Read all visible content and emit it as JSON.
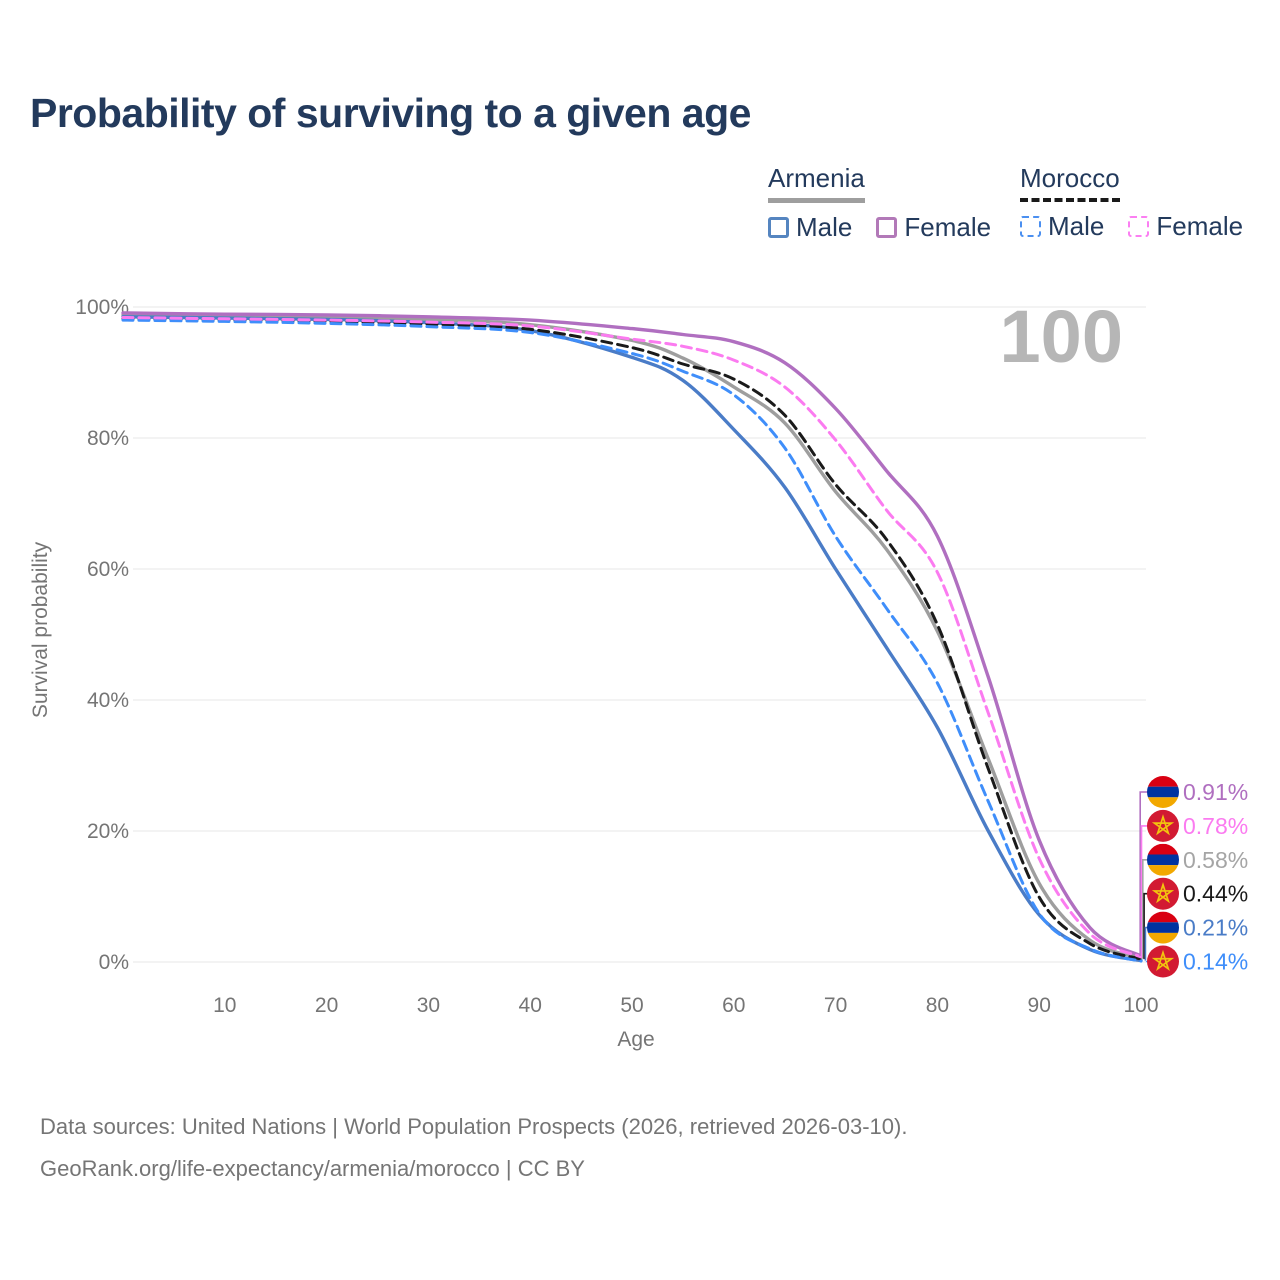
{
  "title": "Probability of surviving to a given age",
  "watermark_age": "100",
  "legend": {
    "groups": [
      {
        "name": "Armenia",
        "line_style": "solid",
        "underline_color": "#9e9e9e",
        "items": [
          {
            "label": "Male",
            "color": "#5585c0",
            "dashed": false
          },
          {
            "label": "Female",
            "color": "#b279b8",
            "dashed": false
          }
        ]
      },
      {
        "name": "Morocco",
        "line_style": "dashed",
        "underline_color": "#1a1a1a",
        "items": [
          {
            "label": "Male",
            "color": "#4a8ff0",
            "dashed": true
          },
          {
            "label": "Female",
            "color": "#fb7ff2",
            "dashed": true
          }
        ]
      }
    ]
  },
  "chart_data": {
    "type": "line",
    "title": "Probability of surviving to a given age",
    "xlabel": "Age",
    "ylabel": "Survival probability",
    "xlim": [
      0,
      100
    ],
    "ylim": [
      0,
      100
    ],
    "grid": "horizontal",
    "x_ticks": [
      10,
      20,
      30,
      40,
      50,
      60,
      70,
      80,
      90,
      100
    ],
    "y_ticks": [
      "0%",
      "20%",
      "40%",
      "60%",
      "80%",
      "100%"
    ],
    "ages": [
      0,
      10,
      20,
      30,
      40,
      50,
      55,
      60,
      65,
      70,
      75,
      80,
      85,
      90,
      95,
      100
    ],
    "series": [
      {
        "name": "Armenia Female",
        "country": "Armenia",
        "sex": "Female",
        "color": "#b06fc0",
        "dashed": false,
        "values": [
          99.1,
          98.9,
          98.8,
          98.5,
          98.0,
          96.7,
          95.8,
          94.7,
          91.5,
          84.5,
          75.0,
          65.0,
          43.5,
          18.6,
          5.2,
          0.91
        ]
      },
      {
        "name": "Morocco Female",
        "country": "Morocco",
        "sex": "Female",
        "color": "#fb7bf0",
        "dashed": true,
        "values": [
          98.4,
          98.2,
          98.0,
          97.7,
          97.1,
          95.1,
          94.0,
          91.9,
          87.8,
          79.7,
          69.0,
          59.5,
          38.0,
          15.8,
          4.3,
          0.78
        ]
      },
      {
        "name": "Armenia Both sexes",
        "country": "Armenia",
        "sex": "Both",
        "color": "#9e9e9e",
        "dashed": false,
        "values": [
          98.8,
          98.6,
          98.5,
          98.1,
          97.3,
          94.9,
          92.2,
          87.8,
          82.3,
          71.8,
          63.0,
          50.5,
          31.0,
          12.0,
          3.3,
          0.58
        ]
      },
      {
        "name": "Morocco Both sexes",
        "country": "Morocco",
        "sex": "Both",
        "color": "#1a1a1a",
        "dashed": true,
        "values": [
          98.2,
          98.0,
          97.8,
          97.4,
          96.6,
          93.8,
          91.3,
          89.0,
          83.5,
          72.9,
          64.5,
          51.5,
          29.5,
          9.9,
          2.8,
          0.44
        ]
      },
      {
        "name": "Armenia Male",
        "country": "Armenia",
        "sex": "Male",
        "color": "#4a7cc7",
        "dashed": false,
        "values": [
          98.5,
          98.3,
          98.1,
          97.6,
          96.4,
          92.3,
          88.8,
          81.3,
          72.5,
          60.0,
          48.0,
          35.8,
          20.0,
          7.2,
          1.9,
          0.21
        ]
      },
      {
        "name": "Morocco Male",
        "country": "Morocco",
        "sex": "Male",
        "color": "#3f8efa",
        "dashed": true,
        "values": [
          98.0,
          97.8,
          97.5,
          97.0,
          96.1,
          92.9,
          90.2,
          86.6,
          78.5,
          65.0,
          54.0,
          42.6,
          24.5,
          7.4,
          2.0,
          0.14
        ]
      }
    ],
    "end_labels": [
      {
        "text": "0.91%",
        "color": "#b06fc0",
        "flag": "armenia"
      },
      {
        "text": "0.78%",
        "color": "#fb7bf0",
        "flag": "morocco"
      },
      {
        "text": "0.58%",
        "color": "#a5a5a5",
        "flag": "armenia"
      },
      {
        "text": "0.44%",
        "color": "#1a1a1a",
        "flag": "morocco"
      },
      {
        "text": "0.21%",
        "color": "#4a7cc7",
        "flag": "armenia"
      },
      {
        "text": "0.14%",
        "color": "#3f8efa",
        "flag": "morocco"
      }
    ],
    "hover_age_indicator": "100"
  },
  "flag_colors": {
    "armenia": {
      "red": "#d90012",
      "blue": "#0033a0",
      "orange": "#f2a800"
    },
    "morocco": {
      "red": "#d21a32",
      "star": "#f2c40e"
    }
  },
  "footer": {
    "line1": "Data sources: United Nations | World Population Prospects (2026, retrieved 2026-03-10).",
    "line2": "GeoRank.org/life-expectancy/armenia/morocco | CC BY"
  }
}
